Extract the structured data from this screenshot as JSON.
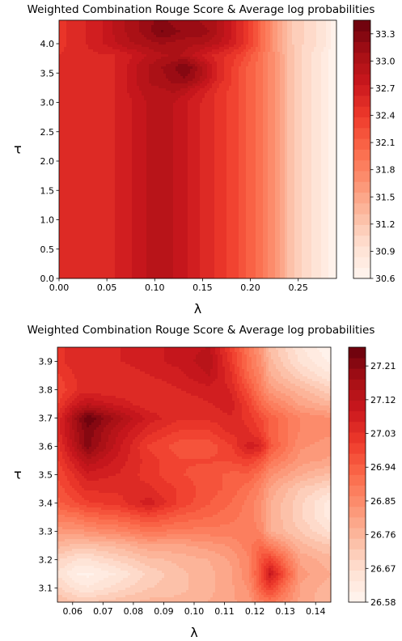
{
  "chart_data": [
    {
      "type": "contour",
      "title": "Weighted Combination Rouge Score & Average log probabilities",
      "xlabel": "λ",
      "ylabel": "τ",
      "xlim": [
        0.0,
        0.29
      ],
      "ylim": [
        0.0,
        4.4
      ],
      "xticks": [
        "0.00",
        "0.05",
        "0.10",
        "0.15",
        "0.20",
        "0.25"
      ],
      "yticks": [
        "0.0",
        "0.5",
        "1.0",
        "1.5",
        "2.0",
        "2.5",
        "3.0",
        "3.5",
        "4.0"
      ],
      "colorbar_ticks": [
        "30.6",
        "30.9",
        "31.2",
        "31.5",
        "31.8",
        "32.1",
        "32.4",
        "32.7",
        "33.0",
        "33.3"
      ],
      "colorbar_range": [
        30.6,
        33.45
      ],
      "colormap": "Reds",
      "x": [
        0.0,
        0.012,
        0.024,
        0.036,
        0.048,
        0.06,
        0.072,
        0.084,
        0.096,
        0.108,
        0.12,
        0.132,
        0.144,
        0.156,
        0.168,
        0.18,
        0.192,
        0.204,
        0.216,
        0.228,
        0.24,
        0.252,
        0.264,
        0.276,
        0.288
      ],
      "y": [
        0.0,
        0.2,
        0.4,
        0.6,
        0.8,
        1.0,
        1.2,
        1.4,
        1.6,
        1.8,
        2.0,
        2.2,
        2.4,
        2.6,
        2.8,
        3.0,
        3.2,
        3.4,
        3.6,
        3.8,
        4.0,
        4.2,
        4.4
      ],
      "z": [
        [
          32.5,
          32.6,
          32.6,
          32.6,
          32.6,
          32.62,
          32.7,
          32.8,
          32.9,
          32.9,
          32.85,
          32.75,
          32.65,
          32.55,
          32.45,
          32.35,
          32.2,
          32.05,
          31.85,
          31.6,
          31.3,
          31.1,
          30.95,
          30.8,
          30.6
        ],
        [
          32.5,
          32.6,
          32.6,
          32.6,
          32.6,
          32.62,
          32.7,
          32.8,
          32.9,
          32.9,
          32.85,
          32.75,
          32.65,
          32.55,
          32.45,
          32.35,
          32.2,
          32.05,
          31.85,
          31.6,
          31.3,
          31.1,
          30.95,
          30.8,
          30.6
        ],
        [
          32.5,
          32.6,
          32.6,
          32.6,
          32.6,
          32.62,
          32.7,
          32.8,
          32.9,
          32.9,
          32.85,
          32.75,
          32.65,
          32.55,
          32.45,
          32.35,
          32.2,
          32.05,
          31.85,
          31.6,
          31.3,
          31.1,
          30.95,
          30.8,
          30.6
        ],
        [
          32.5,
          32.6,
          32.6,
          32.6,
          32.6,
          32.62,
          32.7,
          32.8,
          32.9,
          32.9,
          32.85,
          32.75,
          32.65,
          32.55,
          32.45,
          32.35,
          32.2,
          32.05,
          31.85,
          31.6,
          31.3,
          31.1,
          30.95,
          30.8,
          30.6
        ],
        [
          32.5,
          32.6,
          32.6,
          32.6,
          32.6,
          32.62,
          32.7,
          32.8,
          32.9,
          32.9,
          32.85,
          32.75,
          32.65,
          32.55,
          32.45,
          32.35,
          32.2,
          32.05,
          31.85,
          31.6,
          31.3,
          31.1,
          30.95,
          30.8,
          30.6
        ],
        [
          32.5,
          32.6,
          32.6,
          32.6,
          32.6,
          32.62,
          32.7,
          32.8,
          32.9,
          32.9,
          32.85,
          32.75,
          32.65,
          32.55,
          32.45,
          32.35,
          32.2,
          32.05,
          31.85,
          31.6,
          31.3,
          31.1,
          30.95,
          30.8,
          30.6
        ],
        [
          32.5,
          32.6,
          32.6,
          32.6,
          32.6,
          32.62,
          32.7,
          32.8,
          32.9,
          32.9,
          32.85,
          32.75,
          32.65,
          32.55,
          32.45,
          32.35,
          32.2,
          32.05,
          31.85,
          31.6,
          31.3,
          31.1,
          30.95,
          30.8,
          30.6
        ],
        [
          32.5,
          32.6,
          32.6,
          32.6,
          32.6,
          32.62,
          32.7,
          32.8,
          32.9,
          32.9,
          32.85,
          32.75,
          32.65,
          32.55,
          32.45,
          32.35,
          32.2,
          32.05,
          31.85,
          31.6,
          31.3,
          31.1,
          30.95,
          30.8,
          30.6
        ],
        [
          32.5,
          32.6,
          32.6,
          32.6,
          32.6,
          32.62,
          32.7,
          32.8,
          32.9,
          32.9,
          32.85,
          32.75,
          32.65,
          32.55,
          32.45,
          32.35,
          32.2,
          32.05,
          31.85,
          31.6,
          31.3,
          31.1,
          30.95,
          30.8,
          30.6
        ],
        [
          32.5,
          32.6,
          32.6,
          32.6,
          32.6,
          32.62,
          32.7,
          32.8,
          32.9,
          32.9,
          32.85,
          32.75,
          32.65,
          32.55,
          32.45,
          32.35,
          32.2,
          32.05,
          31.85,
          31.6,
          31.3,
          31.1,
          30.95,
          30.8,
          30.6
        ],
        [
          32.5,
          32.6,
          32.6,
          32.6,
          32.6,
          32.62,
          32.7,
          32.8,
          32.9,
          32.9,
          32.85,
          32.75,
          32.65,
          32.55,
          32.45,
          32.35,
          32.2,
          32.05,
          31.85,
          31.6,
          31.3,
          31.1,
          30.95,
          30.8,
          30.6
        ],
        [
          32.5,
          32.6,
          32.6,
          32.6,
          32.6,
          32.62,
          32.7,
          32.8,
          32.9,
          32.9,
          32.85,
          32.75,
          32.65,
          32.55,
          32.45,
          32.35,
          32.2,
          32.05,
          31.85,
          31.6,
          31.3,
          31.1,
          30.95,
          30.8,
          30.6
        ],
        [
          32.5,
          32.6,
          32.6,
          32.6,
          32.6,
          32.62,
          32.7,
          32.8,
          32.9,
          32.9,
          32.85,
          32.75,
          32.65,
          32.55,
          32.45,
          32.35,
          32.2,
          32.05,
          31.85,
          31.6,
          31.3,
          31.1,
          30.95,
          30.8,
          30.6
        ],
        [
          32.5,
          32.6,
          32.6,
          32.6,
          32.6,
          32.62,
          32.7,
          32.8,
          32.9,
          32.9,
          32.85,
          32.75,
          32.65,
          32.55,
          32.45,
          32.35,
          32.2,
          32.05,
          31.85,
          31.6,
          31.3,
          31.1,
          30.95,
          30.8,
          30.6
        ],
        [
          32.5,
          32.6,
          32.6,
          32.6,
          32.6,
          32.62,
          32.7,
          32.8,
          32.9,
          32.9,
          32.85,
          32.75,
          32.65,
          32.55,
          32.45,
          32.35,
          32.2,
          32.05,
          31.85,
          31.6,
          31.3,
          31.1,
          30.95,
          30.8,
          30.6
        ],
        [
          32.5,
          32.6,
          32.6,
          32.6,
          32.6,
          32.62,
          32.7,
          32.8,
          32.9,
          32.9,
          32.85,
          32.75,
          32.65,
          32.55,
          32.45,
          32.35,
          32.2,
          32.05,
          31.85,
          31.6,
          31.3,
          31.1,
          30.95,
          30.8,
          30.6
        ],
        [
          32.5,
          32.6,
          32.6,
          32.6,
          32.6,
          32.62,
          32.75,
          32.85,
          32.95,
          32.95,
          33.0,
          32.9,
          32.75,
          32.6,
          32.45,
          32.35,
          32.2,
          32.05,
          31.85,
          31.6,
          31.3,
          31.1,
          30.95,
          30.8,
          30.6
        ],
        [
          32.5,
          32.6,
          32.6,
          32.6,
          32.6,
          32.62,
          32.75,
          32.9,
          33.0,
          33.05,
          33.15,
          33.2,
          33.05,
          32.8,
          32.55,
          32.4,
          32.2,
          32.05,
          31.85,
          31.6,
          31.3,
          31.1,
          30.95,
          30.8,
          30.6
        ],
        [
          32.5,
          32.6,
          32.6,
          32.6,
          32.6,
          32.62,
          32.75,
          32.9,
          33.0,
          33.1,
          33.2,
          33.35,
          33.1,
          32.85,
          32.55,
          32.4,
          32.2,
          32.05,
          31.85,
          31.6,
          31.3,
          31.1,
          30.95,
          30.8,
          30.6
        ],
        [
          32.5,
          32.6,
          32.6,
          32.6,
          32.6,
          32.62,
          32.7,
          32.8,
          32.9,
          32.95,
          33.0,
          32.95,
          32.8,
          32.65,
          32.55,
          32.45,
          32.3,
          32.1,
          31.85,
          31.6,
          31.3,
          31.1,
          30.95,
          30.8,
          30.6
        ],
        [
          32.4,
          32.55,
          32.6,
          32.65,
          32.75,
          32.85,
          32.95,
          33.0,
          33.05,
          33.1,
          33.05,
          33.0,
          33.0,
          32.95,
          32.85,
          32.7,
          32.5,
          32.25,
          31.9,
          31.55,
          31.25,
          31.1,
          31.0,
          30.9,
          30.65
        ],
        [
          32.4,
          32.55,
          32.6,
          32.65,
          32.75,
          32.9,
          33.0,
          33.1,
          33.2,
          33.35,
          33.25,
          33.2,
          33.2,
          33.1,
          32.95,
          32.75,
          32.5,
          32.25,
          31.9,
          31.55,
          31.25,
          31.1,
          31.0,
          30.9,
          30.65
        ],
        [
          32.4,
          32.55,
          32.6,
          32.65,
          32.75,
          32.9,
          33.0,
          33.1,
          33.2,
          33.25,
          33.15,
          33.1,
          33.1,
          33.05,
          32.95,
          32.75,
          32.5,
          32.25,
          31.9,
          31.55,
          31.25,
          31.1,
          31.0,
          30.9,
          30.65
        ]
      ]
    },
    {
      "type": "contour",
      "title": "Weighted Combination Rouge Score & Average log probabilities",
      "xlabel": "λ",
      "ylabel": "τ",
      "xlim": [
        0.055,
        0.145
      ],
      "ylim": [
        3.05,
        3.95
      ],
      "xticks": [
        "0.06",
        "0.07",
        "0.08",
        "0.09",
        "0.10",
        "0.11",
        "0.12",
        "0.13",
        "0.14"
      ],
      "yticks": [
        "3.1",
        "3.2",
        "3.3",
        "3.4",
        "3.5",
        "3.6",
        "3.7",
        "3.8",
        "3.9"
      ],
      "colorbar_ticks": [
        "26.58",
        "26.67",
        "26.76",
        "26.85",
        "26.94",
        "27.03",
        "27.12",
        "27.21"
      ],
      "colorbar_range": [
        26.58,
        27.26
      ],
      "colormap": "Reds",
      "x": [
        0.055,
        0.062,
        0.065,
        0.075,
        0.085,
        0.095,
        0.105,
        0.112,
        0.118,
        0.122,
        0.125,
        0.135,
        0.145
      ],
      "y": [
        3.05,
        3.1,
        3.15,
        3.2,
        3.25,
        3.3,
        3.35,
        3.4,
        3.45,
        3.5,
        3.55,
        3.6,
        3.65,
        3.7,
        3.75,
        3.8,
        3.85,
        3.9,
        3.95
      ],
      "z": [
        [
          26.75,
          26.72,
          26.72,
          26.74,
          26.76,
          26.76,
          26.78,
          26.8,
          26.82,
          26.88,
          26.9,
          26.8,
          26.75
        ],
        [
          26.7,
          26.65,
          26.64,
          26.68,
          26.72,
          26.74,
          26.77,
          26.8,
          26.84,
          26.95,
          27.0,
          26.8,
          26.76
        ],
        [
          26.66,
          26.6,
          26.6,
          26.64,
          26.7,
          26.74,
          26.77,
          26.8,
          26.86,
          26.98,
          27.1,
          26.82,
          26.78
        ],
        [
          26.7,
          26.66,
          26.66,
          26.7,
          26.74,
          26.76,
          26.78,
          26.81,
          26.86,
          26.96,
          27.0,
          26.8,
          26.76
        ],
        [
          26.76,
          26.74,
          26.74,
          26.76,
          26.8,
          26.8,
          26.82,
          26.84,
          26.88,
          26.92,
          26.88,
          26.76,
          26.72
        ],
        [
          26.82,
          26.82,
          26.84,
          26.86,
          26.9,
          26.88,
          26.88,
          26.88,
          26.88,
          26.86,
          26.78,
          26.72,
          26.66
        ],
        [
          26.88,
          26.9,
          26.92,
          26.94,
          26.98,
          26.94,
          26.92,
          26.9,
          26.88,
          26.84,
          26.78,
          26.7,
          26.62
        ],
        [
          26.94,
          26.98,
          27.0,
          27.02,
          27.08,
          27.0,
          26.95,
          26.92,
          26.88,
          26.84,
          26.78,
          26.7,
          26.62
        ],
        [
          26.96,
          27.02,
          27.04,
          27.04,
          27.04,
          27.0,
          26.96,
          26.94,
          26.9,
          26.86,
          26.8,
          26.72,
          26.68
        ],
        [
          26.98,
          27.05,
          27.08,
          27.06,
          27.02,
          26.98,
          26.96,
          26.94,
          26.94,
          26.9,
          26.84,
          26.78,
          26.74
        ],
        [
          27.0,
          27.1,
          27.14,
          27.08,
          27.02,
          26.98,
          26.98,
          26.98,
          27.0,
          26.96,
          26.9,
          26.82,
          26.8
        ],
        [
          27.02,
          27.16,
          27.22,
          27.1,
          27.0,
          26.96,
          26.96,
          27.0,
          27.08,
          27.06,
          26.96,
          26.84,
          26.82
        ],
        [
          27.04,
          27.18,
          27.22,
          27.12,
          27.04,
          27.0,
          27.0,
          27.04,
          27.04,
          27.0,
          26.94,
          26.86,
          26.84
        ],
        [
          27.04,
          27.2,
          27.26,
          27.16,
          27.08,
          27.04,
          27.04,
          27.06,
          27.02,
          26.98,
          26.94,
          26.86,
          26.84
        ],
        [
          27.0,
          27.1,
          27.12,
          27.08,
          27.04,
          27.04,
          27.06,
          27.08,
          27.0,
          26.92,
          26.88,
          26.8,
          26.76
        ],
        [
          26.98,
          27.04,
          27.04,
          27.04,
          27.04,
          27.06,
          27.08,
          27.06,
          26.96,
          26.88,
          26.82,
          26.76,
          26.7
        ],
        [
          27.0,
          27.04,
          27.04,
          27.04,
          27.06,
          27.08,
          27.12,
          27.04,
          26.92,
          26.86,
          26.78,
          26.7,
          26.64
        ],
        [
          27.02,
          27.06,
          27.06,
          27.06,
          27.08,
          27.1,
          27.14,
          27.02,
          26.9,
          26.84,
          26.76,
          26.66,
          26.6
        ],
        [
          27.02,
          27.06,
          27.06,
          27.06,
          27.08,
          27.1,
          27.12,
          27.0,
          26.9,
          26.82,
          26.74,
          26.64,
          26.58
        ]
      ]
    }
  ]
}
